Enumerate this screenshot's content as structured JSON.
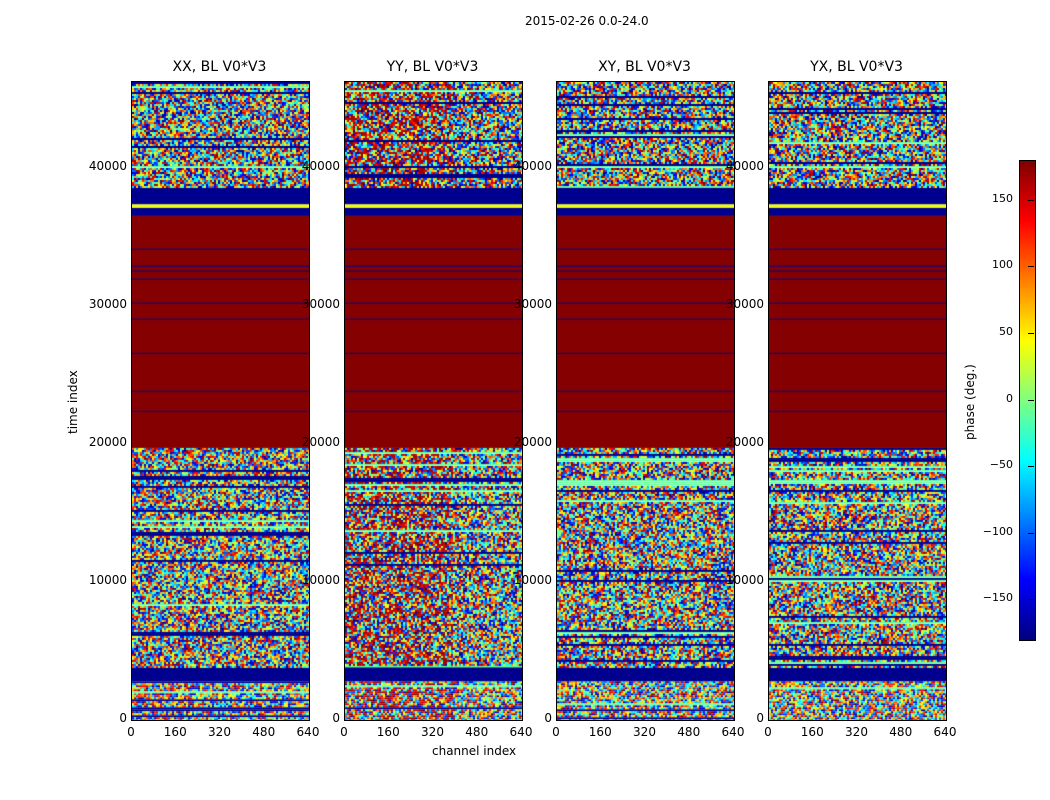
{
  "chart_data": {
    "type": "heatmap",
    "suptitle": "2015-02-26 0.0-24.0",
    "xlabel": "channel index",
    "ylabel": "time index",
    "xlim": [
      0,
      640
    ],
    "ylim": [
      0,
      46200
    ],
    "xticks": [
      "0",
      "160",
      "320",
      "480",
      "640"
    ],
    "xtick_values": [
      0,
      160,
      320,
      480,
      640
    ],
    "yticks": [
      "0",
      "10000",
      "20000",
      "30000",
      "40000"
    ],
    "ytick_values": [
      0,
      10000,
      20000,
      30000,
      40000
    ],
    "colorbar": {
      "label": "phase (deg.)",
      "range": [
        -180,
        180
      ],
      "ticks": [
        "150",
        "100",
        "50",
        "0",
        "−50",
        "−100",
        "−150"
      ],
      "tick_values": [
        150,
        100,
        50,
        0,
        -50,
        -100,
        -150
      ],
      "colormap": "jet"
    },
    "panels": [
      {
        "title": "XX, BL V0*V3",
        "noise_bias": 0
      },
      {
        "title": "YY, BL V0*V3",
        "noise_bias": 0.25
      },
      {
        "title": "XY, BL V0*V3",
        "noise_bias": 0
      },
      {
        "title": "YX, BL V0*V3",
        "noise_bias": 0
      }
    ],
    "regions": [
      {
        "t0": 0,
        "t1": 2800,
        "kind": "noise"
      },
      {
        "t0": 2800,
        "t1": 3900,
        "kind": "constant",
        "phase": -175
      },
      {
        "t0": 3900,
        "t1": 19700,
        "kind": "noise"
      },
      {
        "t0": 19700,
        "t1": 36500,
        "kind": "constant",
        "phase": 178
      },
      {
        "t0": 36500,
        "t1": 37100,
        "kind": "constant",
        "phase": -175
      },
      {
        "t0": 37100,
        "t1": 37350,
        "kind": "constant",
        "phase": 40
      },
      {
        "t0": 37350,
        "t1": 38550,
        "kind": "constant",
        "phase": -175
      },
      {
        "t0": 38550,
        "t1": 46200,
        "kind": "noise"
      }
    ],
    "flag_lines_phase": -175,
    "flag_lines": [
      22390,
      23840,
      26590,
      29060,
      30220,
      31960,
      32540,
      32900,
      34130
    ]
  }
}
